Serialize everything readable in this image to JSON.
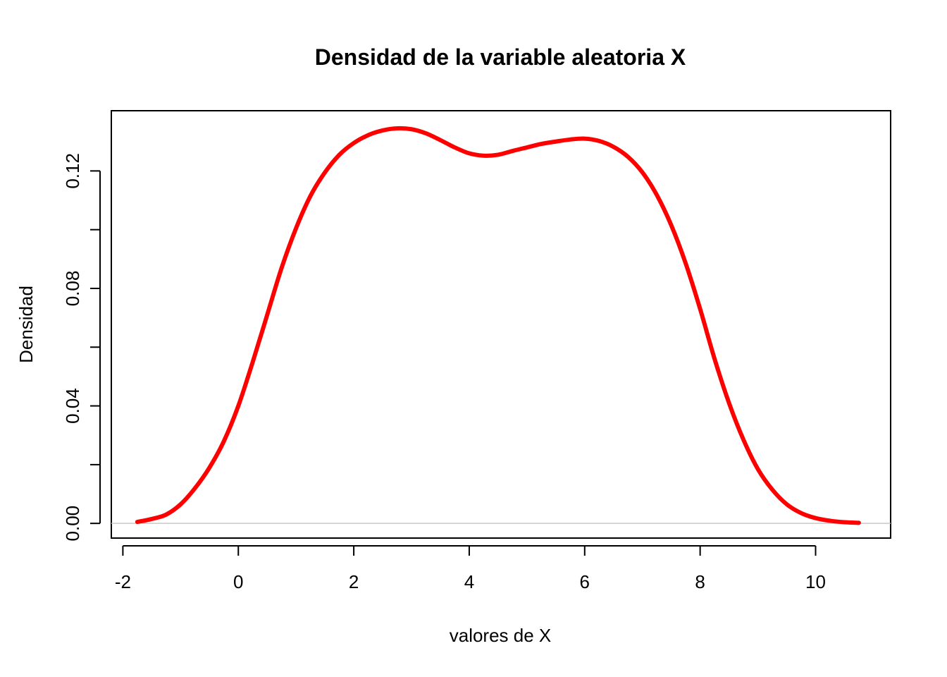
{
  "chart_data": {
    "type": "line",
    "title": "Densidad de la variable aleatoria X",
    "xlabel": "valores de X",
    "ylabel": "Densidad",
    "x_ticks": [
      -2,
      0,
      2,
      4,
      6,
      8,
      10
    ],
    "x_tick_labels": [
      "-2",
      "0",
      "2",
      "4",
      "6",
      "8",
      "10"
    ],
    "y_ticks": [
      0.0,
      0.02,
      0.04,
      0.06,
      0.08,
      0.1,
      0.12
    ],
    "y_tick_labels": [
      "0.00",
      "",
      "0.04",
      "",
      "0.08",
      "",
      "0.12"
    ],
    "xlim": [
      -2.2,
      11.3
    ],
    "ylim": [
      -0.005,
      0.1405
    ],
    "zero_line": true,
    "grid": false,
    "series": [
      {
        "color": "#ff0000",
        "x": [
          -1.75,
          -1.5,
          -1.25,
          -1.0,
          -0.75,
          -0.5,
          -0.25,
          0.0,
          0.25,
          0.5,
          0.75,
          1.0,
          1.25,
          1.5,
          1.75,
          2.0,
          2.25,
          2.5,
          2.75,
          3.0,
          3.25,
          3.5,
          3.75,
          4.0,
          4.25,
          4.5,
          4.75,
          5.0,
          5.25,
          5.5,
          5.75,
          6.0,
          6.25,
          6.5,
          6.75,
          7.0,
          7.25,
          7.5,
          7.75,
          8.0,
          8.25,
          8.5,
          8.75,
          9.0,
          9.25,
          9.5,
          9.75,
          10.0,
          10.25,
          10.5,
          10.75
        ],
        "y": [
          0.0005,
          0.0015,
          0.003,
          0.0065,
          0.012,
          0.019,
          0.028,
          0.04,
          0.055,
          0.071,
          0.087,
          0.1005,
          0.1115,
          0.1195,
          0.1255,
          0.1295,
          0.1322,
          0.1338,
          0.1345,
          0.1342,
          0.1328,
          0.1305,
          0.128,
          0.126,
          0.1252,
          0.1255,
          0.1268,
          0.128,
          0.1292,
          0.13,
          0.1307,
          0.131,
          0.1302,
          0.1282,
          0.1248,
          0.1195,
          0.1118,
          0.1015,
          0.0885,
          0.073,
          0.056,
          0.041,
          0.0285,
          0.0185,
          0.0115,
          0.0065,
          0.0035,
          0.0018,
          0.0009,
          0.0004,
          0.0002
        ]
      }
    ]
  }
}
